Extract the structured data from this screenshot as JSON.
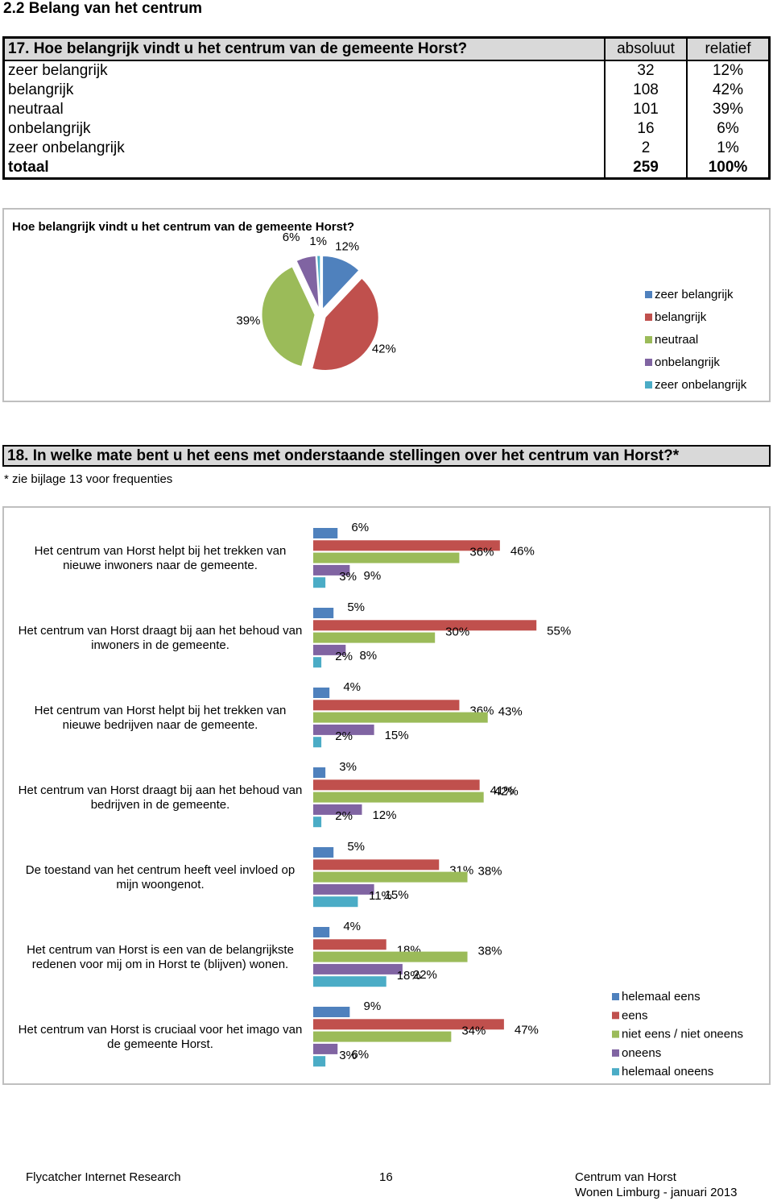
{
  "section_title": "2.2 Belang van het centrum",
  "table": {
    "title": "17. Hoe belangrijk vindt u het centrum van de gemeente Horst?",
    "headers": [
      "absoluut",
      "relatief"
    ],
    "rows": [
      [
        "zeer belangrijk",
        32,
        "12%"
      ],
      [
        "belangrijk",
        108,
        "42%"
      ],
      [
        "neutraal",
        101,
        "39%"
      ],
      [
        "onbelangrijk",
        16,
        "6%"
      ],
      [
        "zeer onbelangrijk",
        2,
        "1%"
      ]
    ],
    "total": [
      "totaal",
      259,
      "100%"
    ]
  },
  "chart_data": [
    {
      "type": "pie",
      "title": "Hoe belangrijk vindt u het centrum van de gemeente Horst?",
      "categories": [
        "zeer belangrijk",
        "belangrijk",
        "neutraal",
        "onbelangrijk",
        "zeer onbelangrijk"
      ],
      "values": [
        12,
        42,
        39,
        6,
        1
      ],
      "value_labels": [
        "12%",
        "42%",
        "39%",
        "6%",
        "1%"
      ],
      "colors": [
        "#4f81bd",
        "#c0504d",
        "#9bbb59",
        "#8064a2",
        "#4bacc6"
      ],
      "legend": "right"
    },
    {
      "type": "bar",
      "orientation": "horizontal",
      "categories": [
        "Het centrum van Horst helpt bij het trekken van nieuwe inwoners naar de gemeente.",
        "Het centrum van Horst draagt bij aan het behoud van inwoners in de gemeente.",
        "Het centrum van Horst helpt bij het trekken van nieuwe bedrijven naar de gemeente.",
        "Het centrum van Horst draagt bij aan het behoud van bedrijven in de gemeente.",
        "De toestand van het centrum heeft veel invloed op mijn woongenot.",
        "Het centrum van Horst is een van de belangrijkste redenen voor mij om in Horst te (blijven) wonen.",
        "Het centrum van Horst is cruciaal voor het imago van de gemeente Horst."
      ],
      "series": [
        {
          "name": "helemaal eens",
          "color": "#4f81bd",
          "values": [
            6,
            5,
            4,
            3,
            5,
            4,
            9
          ],
          "value_labels": [
            "6%",
            "5%",
            "4%",
            "3%",
            "5%",
            "4%",
            "9%"
          ]
        },
        {
          "name": "eens",
          "color": "#c0504d",
          "values": [
            46,
            55,
            36,
            41,
            31,
            18,
            47
          ],
          "value_labels": [
            "46%",
            "55%",
            "36%",
            "41%",
            "31%",
            "18%",
            "47%"
          ]
        },
        {
          "name": "niet eens / niet oneens",
          "color": "#9bbb59",
          "values": [
            36,
            30,
            43,
            42,
            38,
            38,
            34
          ],
          "value_labels": [
            "36%",
            "30%",
            "43%",
            "42%",
            "38%",
            "38%",
            "34%"
          ]
        },
        {
          "name": "oneens",
          "color": "#8064a2",
          "values": [
            9,
            8,
            15,
            12,
            15,
            22,
            6
          ],
          "value_labels": [
            "9%",
            "8%",
            "15%",
            "12%",
            "15%",
            "22%",
            "6%"
          ]
        },
        {
          "name": "helemaal oneens",
          "color": "#4bacc6",
          "values": [
            3,
            2,
            2,
            2,
            11,
            18,
            3
          ],
          "value_labels": [
            "3%",
            "2%",
            "2%",
            "2%",
            "11%",
            "18%",
            "3%"
          ]
        }
      ],
      "legend": "bottom-right"
    }
  ],
  "question": {
    "title": "18. In welke mate bent u het eens met onderstaande stellingen over het centrum van Horst?*",
    "note": "* zie bijlage 13 voor frequenties"
  },
  "footer": {
    "left": "Flycatcher Internet Research",
    "page": 16,
    "right": [
      "Centrum van Horst",
      "Wonen Limburg - januari 2013"
    ]
  }
}
